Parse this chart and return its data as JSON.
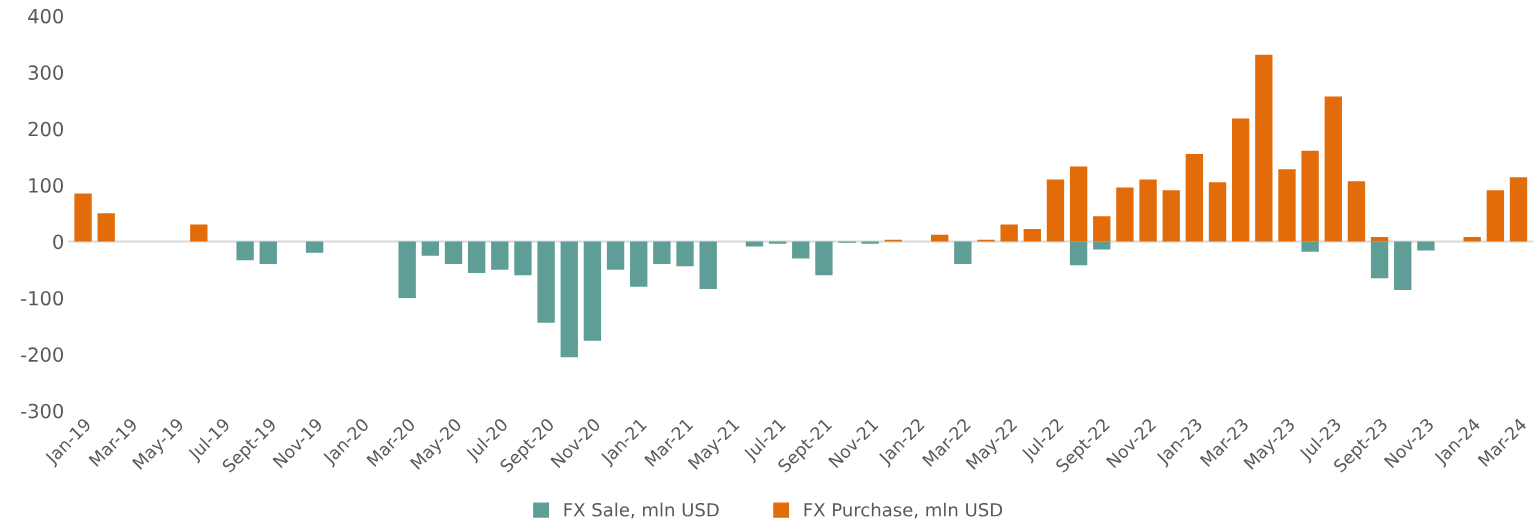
{
  "chart_data": {
    "type": "bar",
    "categories": [
      "Jan-19",
      null,
      "Mar-19",
      null,
      "May-19",
      null,
      "Jul-19",
      null,
      "Sept-19",
      null,
      "Nov-19",
      null,
      "Jan-20",
      null,
      "Mar-20",
      null,
      "May-20",
      null,
      "Jul-20",
      null,
      "Sept-20",
      null,
      "Nov-20",
      null,
      "Jan-21",
      null,
      "Mar-21",
      null,
      "May-21",
      null,
      "Jul-21",
      null,
      "Sept-21",
      null,
      "Nov-21",
      null,
      "Jan-22",
      null,
      "Mar-22",
      null,
      "May-22",
      null,
      "Jul-22",
      null,
      "Sept-22",
      null,
      "Nov-22",
      null,
      "Jan-23",
      null,
      "Mar-23",
      null,
      "May-23",
      null,
      "Jul-23",
      null,
      "Sept-23",
      null,
      "Nov-23",
      null,
      "Jan-24",
      null,
      "Mar-24"
    ],
    "series": [
      {
        "name": "FX Sale, mln USD",
        "color": "#5f9e97",
        "values": [
          null,
          null,
          null,
          null,
          null,
          null,
          null,
          -33,
          -40,
          null,
          -20,
          null,
          null,
          null,
          -100,
          -25,
          -40,
          -56,
          -50,
          -60,
          -144,
          -205,
          -176,
          -50,
          -80,
          -40,
          -44,
          -84,
          null,
          -9,
          -4,
          -30,
          -60,
          -2,
          -4,
          null,
          null,
          null,
          -40,
          null,
          null,
          null,
          null,
          -42,
          -14,
          null,
          null,
          null,
          null,
          null,
          null,
          null,
          null,
          -18,
          null,
          null,
          -65,
          -86,
          -16,
          null,
          null,
          null,
          null
        ]
      },
      {
        "name": "FX Purchase, mln USD",
        "color": "#e36c0a",
        "values": [
          85,
          50,
          null,
          null,
          null,
          30,
          null,
          null,
          null,
          null,
          null,
          null,
          null,
          null,
          null,
          null,
          null,
          null,
          null,
          null,
          null,
          null,
          null,
          null,
          null,
          null,
          null,
          null,
          null,
          null,
          null,
          null,
          null,
          null,
          null,
          3,
          null,
          12,
          null,
          3,
          30,
          22,
          110,
          133,
          45,
          96,
          110,
          91,
          155,
          105,
          218,
          331,
          128,
          161,
          257,
          107,
          8,
          null,
          null,
          null,
          8,
          91,
          114
        ]
      }
    ],
    "ylim": [
      -300,
      400
    ],
    "yticks": [
      -300,
      -200,
      -100,
      0,
      100,
      200,
      300,
      400
    ],
    "legend": "bottom"
  }
}
